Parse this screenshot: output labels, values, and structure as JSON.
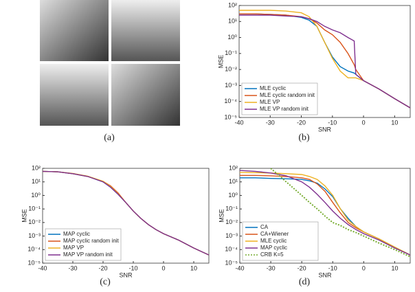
{
  "figure_a_caption": "(a)",
  "chart_data": [
    {
      "type": "line",
      "caption": "(b)",
      "xlabel": "SNR",
      "ylabel": "MSE",
      "log_y": true,
      "legend": "lower left",
      "xlim": [
        -40,
        15
      ],
      "ylim": [
        1e-05,
        100
      ],
      "xticks": [
        -40,
        -30,
        -20,
        -10,
        0,
        10
      ],
      "yticks": [
        {
          "value": 1e-05,
          "label": "10⁻⁵"
        },
        {
          "value": 0.0001,
          "label": "10⁻⁴"
        },
        {
          "value": 0.001,
          "label": "10⁻³"
        },
        {
          "value": 0.01,
          "label": "10⁻²"
        },
        {
          "value": 0.1,
          "label": "10⁻¹"
        },
        {
          "value": 1,
          "label": "10⁰"
        },
        {
          "value": 10,
          "label": "10¹"
        },
        {
          "value": 100,
          "label": "10²"
        }
      ],
      "x": [
        -40,
        -35,
        -30,
        -25,
        -20,
        -17.5,
        -15,
        -12.5,
        -10,
        -7.5,
        -5,
        -3,
        -2.5,
        0,
        5,
        10,
        15
      ],
      "series": [
        {
          "name": "MLE cyclic",
          "color": "#0072bd",
          "values": [
            30,
            30,
            28,
            25,
            18,
            12,
            5,
            0.5,
            0.06,
            0.015,
            0.008,
            0.006,
            0.005,
            0.002,
            0.0006,
            0.00015,
            4e-05
          ]
        },
        {
          "name": "MLE cyclic random init",
          "color": "#d95319",
          "values": [
            30,
            30,
            28,
            25,
            20,
            15,
            8,
            3,
            1.5,
            0.5,
            0.1,
            0.02,
            0.01,
            0.002,
            0.0006,
            0.00015,
            4e-05
          ]
        },
        {
          "name": "MLE VP",
          "color": "#edb120",
          "values": [
            50,
            50,
            50,
            45,
            35,
            20,
            5,
            0.5,
            0.05,
            0.008,
            0.003,
            0.003,
            0.003,
            0.002,
            0.0006,
            0.00015,
            4e-05
          ]
        },
        {
          "name": "MLE VP random init",
          "color": "#7e2f8e",
          "values": [
            25,
            25,
            25,
            22,
            20,
            15,
            10,
            5,
            3,
            2,
            1,
            0.6,
            0.005,
            0.002,
            0.0006,
            0.00015,
            4e-05
          ]
        }
      ]
    },
    {
      "type": "line",
      "caption": "(c)",
      "xlabel": "SNR",
      "ylabel": "MSE",
      "log_y": true,
      "legend": "lower left",
      "xlim": [
        -40,
        15
      ],
      "ylim": [
        1e-05,
        100
      ],
      "xticks": [
        -40,
        -30,
        -20,
        -10,
        0,
        10
      ],
      "yticks": [
        {
          "value": 1e-05,
          "label": "10⁻⁵"
        },
        {
          "value": 0.0001,
          "label": "10⁻⁴"
        },
        {
          "value": 0.001,
          "label": "10⁻³"
        },
        {
          "value": 0.01,
          "label": "10⁻²"
        },
        {
          "value": 0.1,
          "label": "10⁻¹"
        },
        {
          "value": 1,
          "label": "10⁰"
        },
        {
          "value": 10,
          "label": "10¹"
        },
        {
          "value": 100,
          "label": "10²"
        }
      ],
      "x": [
        -40,
        -35,
        -30,
        -25,
        -20,
        -17.5,
        -15,
        -12.5,
        -10,
        -7.5,
        -5,
        -2.5,
        0,
        5,
        10,
        15
      ],
      "series": [
        {
          "name": "MAP cyclic",
          "color": "#0072bd",
          "values": [
            60,
            55,
            40,
            25,
            10,
            4,
            1.2,
            0.3,
            0.07,
            0.02,
            0.007,
            0.003,
            0.0015,
            0.0005,
            0.00013,
            4e-05
          ]
        },
        {
          "name": "MAP cyclic random init",
          "color": "#d95319",
          "values": [
            60,
            55,
            40,
            25,
            11,
            5,
            1.5,
            0.3,
            0.07,
            0.02,
            0.007,
            0.003,
            0.0015,
            0.0005,
            0.00013,
            4e-05
          ]
        },
        {
          "name": "MAP VP",
          "color": "#edb120",
          "values": [
            60,
            55,
            42,
            26,
            11,
            4.5,
            1.3,
            0.3,
            0.07,
            0.02,
            0.007,
            0.003,
            0.0015,
            0.0005,
            0.00013,
            4e-05
          ]
        },
        {
          "name": "MAP VP random init",
          "color": "#7e2f8e",
          "values": [
            60,
            55,
            40,
            25,
            10,
            4,
            1.2,
            0.3,
            0.07,
            0.02,
            0.007,
            0.003,
            0.0015,
            0.0005,
            0.00013,
            4e-05
          ]
        }
      ]
    },
    {
      "type": "line",
      "caption": "(d)",
      "xlabel": "SNR",
      "ylabel": "MSE",
      "log_y": true,
      "legend": "lower left",
      "xlim": [
        -40,
        15
      ],
      "ylim": [
        1e-05,
        100
      ],
      "xticks": [
        -40,
        -30,
        -20,
        -10,
        0,
        10
      ],
      "yticks": [
        {
          "value": 1e-05,
          "label": "10⁻⁵"
        },
        {
          "value": 0.0001,
          "label": "10⁻⁴"
        },
        {
          "value": 0.001,
          "label": "10⁻³"
        },
        {
          "value": 0.01,
          "label": "10⁻²"
        },
        {
          "value": 0.1,
          "label": "10⁻¹"
        },
        {
          "value": 1,
          "label": "10⁰"
        },
        {
          "value": 10,
          "label": "10¹"
        },
        {
          "value": 100,
          "label": "10²"
        }
      ],
      "x": [
        -40,
        -35,
        -30,
        -25,
        -20,
        -17.5,
        -15,
        -12.5,
        -10,
        -7.5,
        -5,
        -2.5,
        0,
        5,
        10,
        15
      ],
      "series": [
        {
          "name": "CA",
          "color": "#0072bd",
          "values": [
            20,
            20,
            18,
            17,
            15,
            12,
            8,
            3,
            0.8,
            0.1,
            0.02,
            0.005,
            0.002,
            0.0006,
            0.00015,
            4e-05
          ]
        },
        {
          "name": "CA+Wiener",
          "color": "#d95319",
          "values": [
            30,
            30,
            28,
            25,
            20,
            15,
            7,
            2,
            0.3,
            0.05,
            0.01,
            0.004,
            0.002,
            0.0006,
            0.00015,
            4e-05
          ]
        },
        {
          "name": "MLE cyclic",
          "color": "#edb120",
          "values": [
            50,
            48,
            45,
            40,
            35,
            25,
            15,
            5,
            1,
            0.1,
            0.015,
            0.005,
            0.002,
            0.0006,
            0.00015,
            4e-05
          ]
        },
        {
          "name": "MAP cyclic",
          "color": "#7e2f8e",
          "values": [
            70,
            60,
            45,
            28,
            10,
            4,
            1.2,
            0.3,
            0.07,
            0.02,
            0.007,
            0.003,
            0.0015,
            0.0005,
            0.00013,
            4e-05
          ]
        },
        {
          "name": "CRB K=5",
          "color": "#77ac30",
          "linestyle": "dotted",
          "values": [
            null,
            null,
            100,
            10,
            1,
            0.3,
            0.1,
            0.03,
            0.01,
            0.006,
            0.003,
            0.0018,
            0.001,
            0.0003,
            0.0001,
            3e-05
          ]
        }
      ]
    }
  ]
}
